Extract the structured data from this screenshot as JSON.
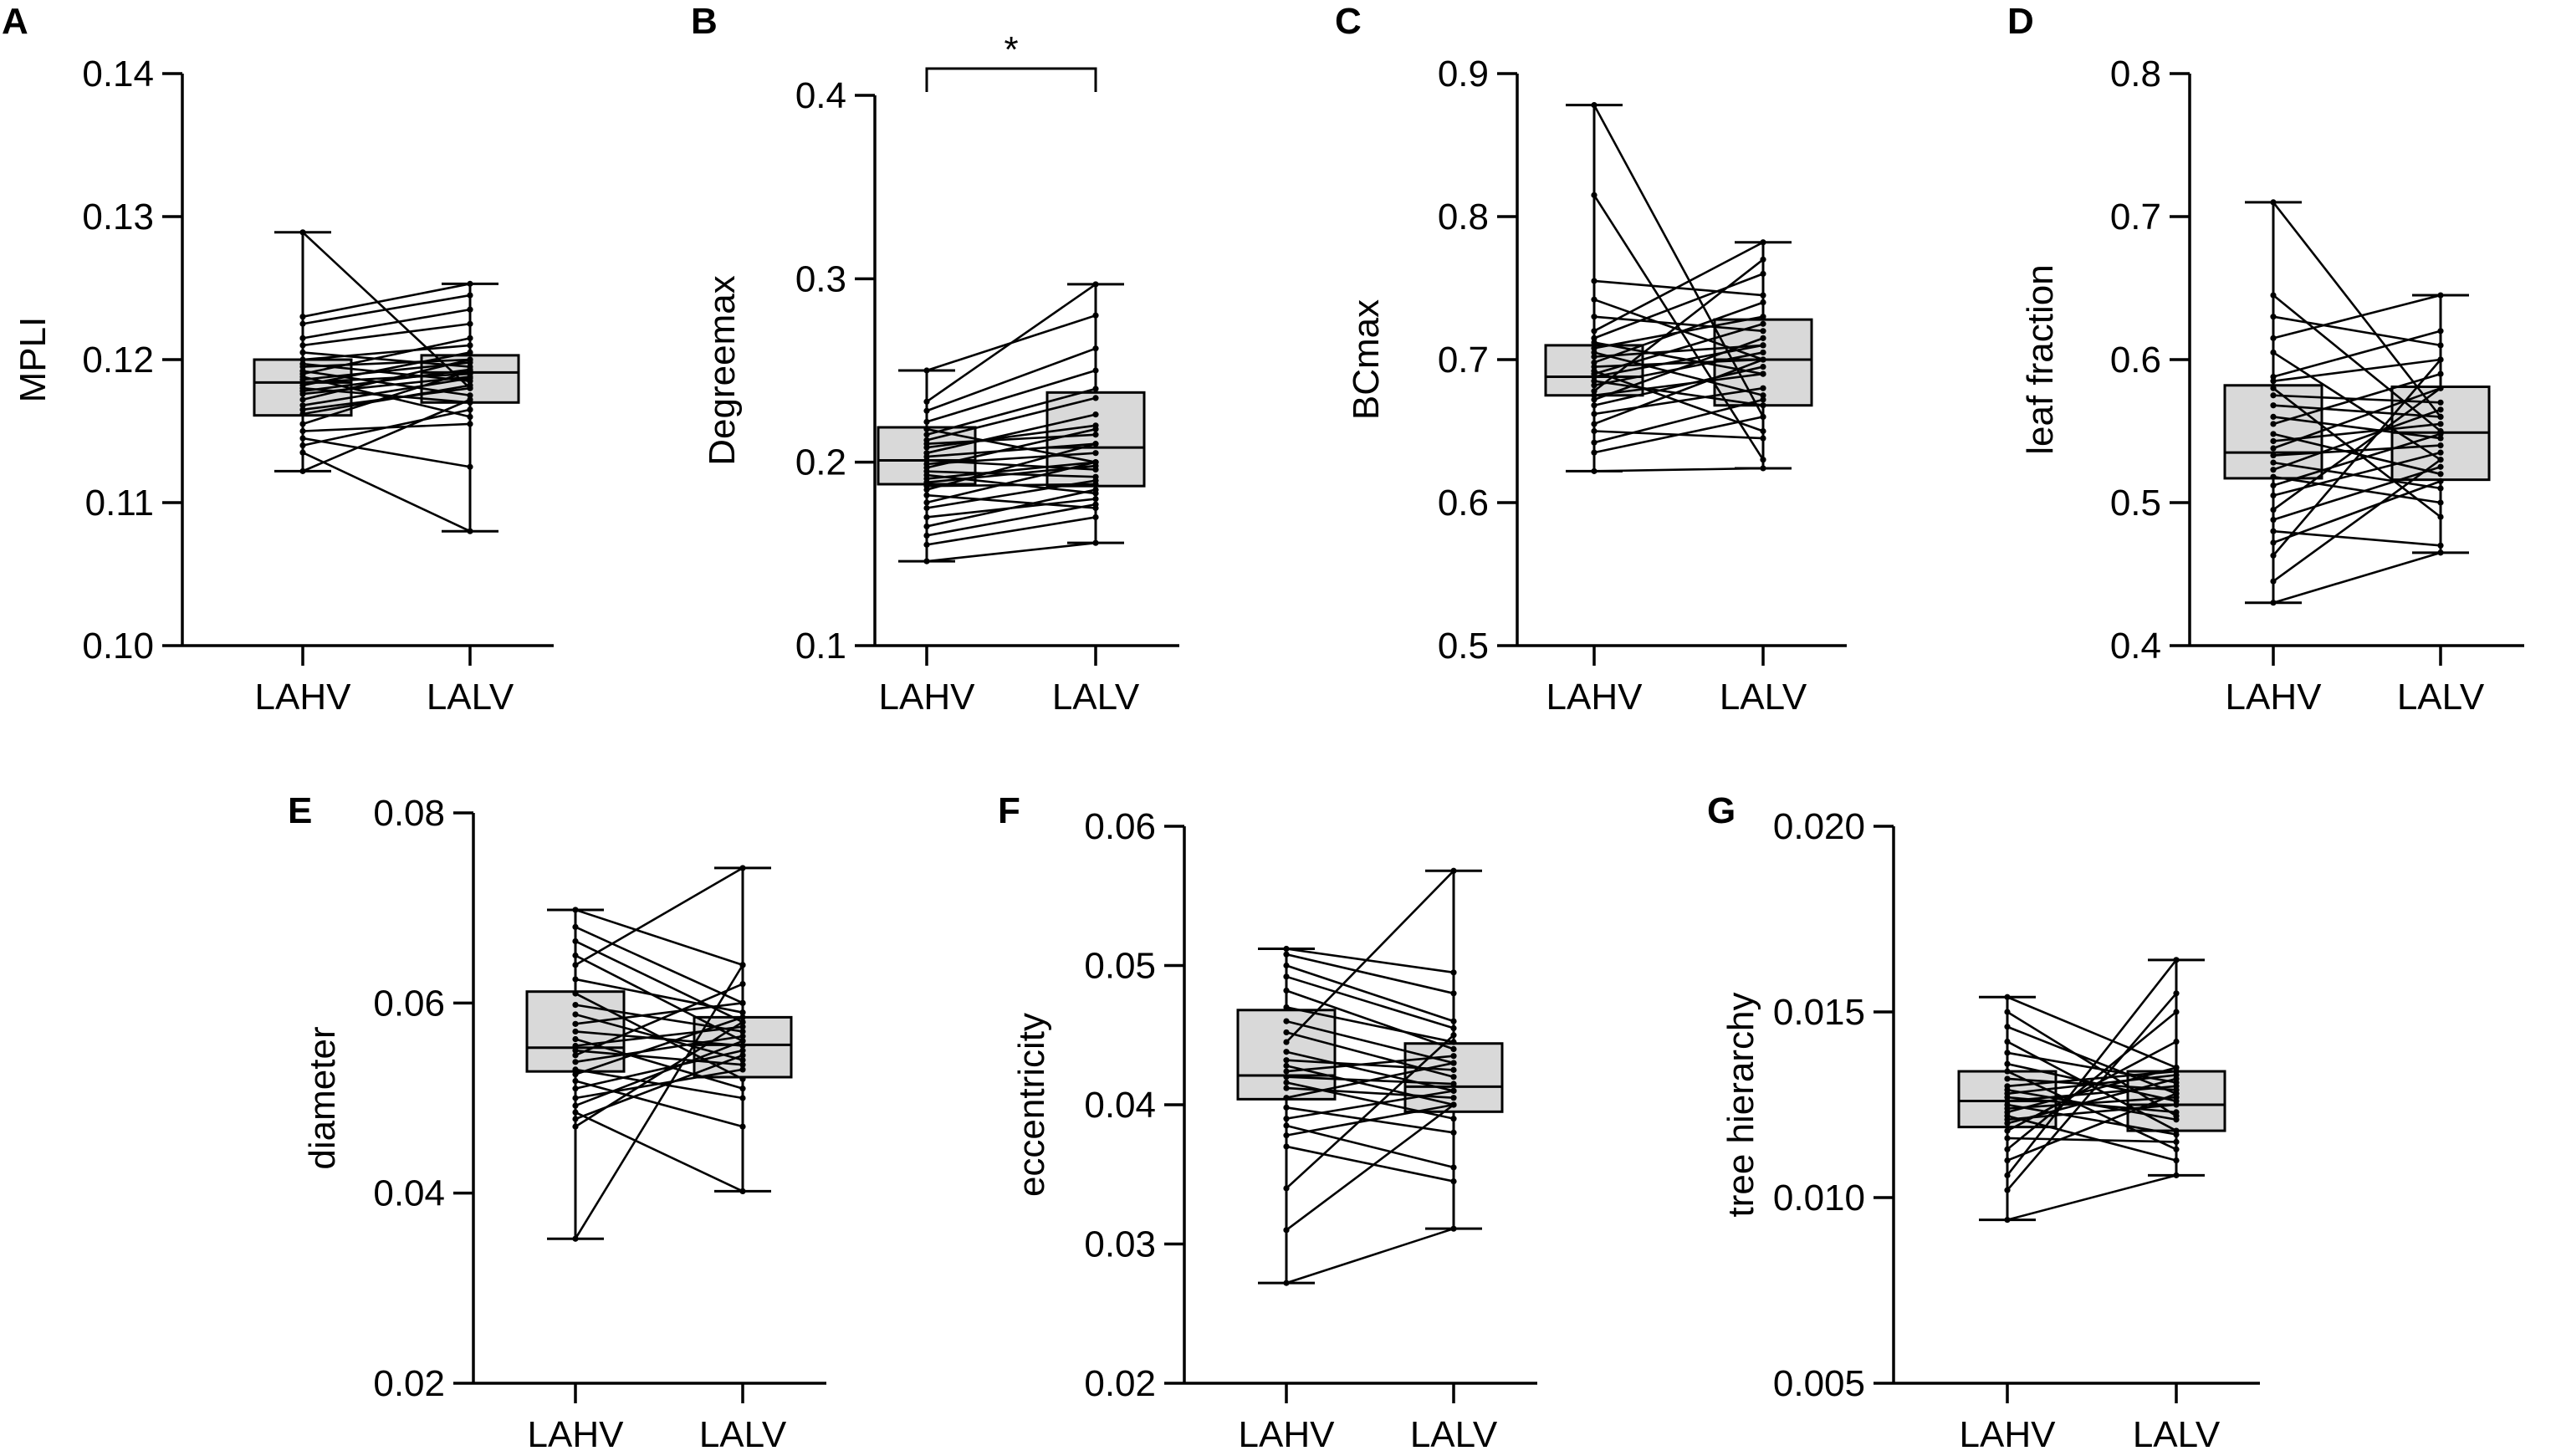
{
  "figure": {
    "box_fill": "#d9d9d9",
    "line_color": "#000000"
  },
  "chart_data": [
    {
      "type": "box",
      "panel": "A",
      "ylabel": "MPLI",
      "categories": [
        "LAHV",
        "LALV"
      ],
      "ylim": [
        0.1,
        0.14
      ],
      "yticks": [
        "0.10",
        "0.11",
        "0.12",
        "0.13",
        "0.14"
      ],
      "significance": "",
      "whiskers": [
        [
          0.1122,
          0.1289
        ],
        [
          0.108,
          0.1253
        ]
      ],
      "boxes": [
        {
          "q1": 0.1161,
          "median": 0.1184,
          "q3": 0.12
        },
        {
          "q1": 0.117,
          "median": 0.1191,
          "q3": 0.1203
        }
      ],
      "pairs": [
        [
          0.1289,
          0.118
        ],
        [
          0.123,
          0.1253
        ],
        [
          0.1225,
          0.1245
        ],
        [
          0.1215,
          0.1235
        ],
        [
          0.121,
          0.1225
        ],
        [
          0.1205,
          0.1195
        ],
        [
          0.12,
          0.121
        ],
        [
          0.1197,
          0.1185
        ],
        [
          0.1195,
          0.12
        ],
        [
          0.1192,
          0.1175
        ],
        [
          0.119,
          0.1215
        ],
        [
          0.1188,
          0.116
        ],
        [
          0.1186,
          0.1198
        ],
        [
          0.1184,
          0.119
        ],
        [
          0.1182,
          0.1205
        ],
        [
          0.118,
          0.117
        ],
        [
          0.1178,
          0.1193
        ],
        [
          0.1176,
          0.1188
        ],
        [
          0.1172,
          0.12
        ],
        [
          0.1168,
          0.1187
        ],
        [
          0.1165,
          0.118
        ],
        [
          0.1162,
          0.1182
        ],
        [
          0.1155,
          0.1192
        ],
        [
          0.115,
          0.1155
        ],
        [
          0.1145,
          0.1125
        ],
        [
          0.114,
          0.1165
        ],
        [
          0.1135,
          0.108
        ],
        [
          0.1122,
          0.1172
        ]
      ]
    },
    {
      "type": "box",
      "panel": "B",
      "ylabel": "Degreemax",
      "categories": [
        "LAHV",
        "LALV"
      ],
      "ylim": [
        0.1,
        0.4
      ],
      "yticks": [
        "0.1",
        "0.2",
        "0.3",
        "0.4"
      ],
      "significance": "*",
      "whiskers": [
        [
          0.146,
          0.25
        ],
        [
          0.156,
          0.297
        ]
      ],
      "boxes": [
        {
          "q1": 0.188,
          "median": 0.201,
          "q3": 0.219
        },
        {
          "q1": 0.187,
          "median": 0.208,
          "q3": 0.238
        }
      ],
      "pairs": [
        [
          0.25,
          0.28
        ],
        [
          0.233,
          0.297
        ],
        [
          0.228,
          0.262
        ],
        [
          0.222,
          0.25
        ],
        [
          0.218,
          0.2
        ],
        [
          0.215,
          0.24
        ],
        [
          0.212,
          0.235
        ],
        [
          0.21,
          0.215
        ],
        [
          0.208,
          0.22
        ],
        [
          0.205,
          0.226
        ],
        [
          0.203,
          0.21
        ],
        [
          0.201,
          0.196
        ],
        [
          0.199,
          0.205
        ],
        [
          0.197,
          0.218
        ],
        [
          0.195,
          0.192
        ],
        [
          0.193,
          0.183
        ],
        [
          0.191,
          0.2
        ],
        [
          0.189,
          0.198
        ],
        [
          0.187,
          0.188
        ],
        [
          0.185,
          0.21
        ],
        [
          0.182,
          0.175
        ],
        [
          0.178,
          0.2
        ],
        [
          0.175,
          0.19
        ],
        [
          0.17,
          0.18
        ],
        [
          0.165,
          0.185
        ],
        [
          0.16,
          0.177
        ],
        [
          0.155,
          0.17
        ],
        [
          0.146,
          0.156
        ]
      ]
    },
    {
      "type": "box",
      "panel": "C",
      "ylabel": "BCmax",
      "categories": [
        "LAHV",
        "LALV"
      ],
      "ylim": [
        0.5,
        0.9
      ],
      "yticks": [
        "0.5",
        "0.6",
        "0.7",
        "0.8",
        "0.9"
      ],
      "significance": "",
      "whiskers": [
        [
          0.622,
          0.878
        ],
        [
          0.624,
          0.782
        ]
      ],
      "boxes": [
        {
          "q1": 0.675,
          "median": 0.688,
          "q3": 0.71
        },
        {
          "q1": 0.668,
          "median": 0.7,
          "q3": 0.728
        }
      ],
      "pairs": [
        [
          0.878,
          0.66
        ],
        [
          0.815,
          0.63
        ],
        [
          0.755,
          0.745
        ],
        [
          0.742,
          0.7
        ],
        [
          0.73,
          0.72
        ],
        [
          0.72,
          0.782
        ],
        [
          0.715,
          0.76
        ],
        [
          0.712,
          0.69
        ],
        [
          0.708,
          0.73
        ],
        [
          0.705,
          0.675
        ],
        [
          0.702,
          0.71
        ],
        [
          0.698,
          0.74
        ],
        [
          0.695,
          0.7
        ],
        [
          0.692,
          0.65
        ],
        [
          0.69,
          0.725
        ],
        [
          0.688,
          0.71
        ],
        [
          0.685,
          0.668
        ],
        [
          0.682,
          0.705
        ],
        [
          0.678,
          0.77
        ],
        [
          0.675,
          0.69
        ],
        [
          0.672,
          0.715
        ],
        [
          0.668,
          0.695
        ],
        [
          0.662,
          0.68
        ],
        [
          0.655,
          0.7
        ],
        [
          0.65,
          0.645
        ],
        [
          0.642,
          0.672
        ],
        [
          0.635,
          0.66
        ],
        [
          0.622,
          0.624
        ]
      ]
    },
    {
      "type": "box",
      "panel": "D",
      "ylabel": "leaf fraction",
      "categories": [
        "LAHV",
        "LALV"
      ],
      "ylim": [
        0.4,
        0.8
      ],
      "yticks": [
        "0.4",
        "0.5",
        "0.6",
        "0.7",
        "0.8"
      ],
      "significance": "",
      "whiskers": [
        [
          0.43,
          0.71
        ],
        [
          0.465,
          0.645
        ]
      ],
      "boxes": [
        {
          "q1": 0.517,
          "median": 0.535,
          "q3": 0.582
        },
        {
          "q1": 0.516,
          "median": 0.549,
          "q3": 0.581
        }
      ],
      "pairs": [
        [
          0.71,
          0.56
        ],
        [
          0.645,
          0.55
        ],
        [
          0.63,
          0.61
        ],
        [
          0.615,
          0.645
        ],
        [
          0.605,
          0.53
        ],
        [
          0.588,
          0.62
        ],
        [
          0.585,
          0.6
        ],
        [
          0.58,
          0.49
        ],
        [
          0.575,
          0.57
        ],
        [
          0.568,
          0.56
        ],
        [
          0.56,
          0.545
        ],
        [
          0.555,
          0.59
        ],
        [
          0.548,
          0.52
        ],
        [
          0.543,
          0.555
        ],
        [
          0.538,
          0.58
        ],
        [
          0.533,
          0.54
        ],
        [
          0.528,
          0.51
        ],
        [
          0.523,
          0.565
        ],
        [
          0.518,
          0.5
        ],
        [
          0.512,
          0.548
        ],
        [
          0.505,
          0.535
        ],
        [
          0.495,
          0.58
        ],
        [
          0.488,
          0.525
        ],
        [
          0.48,
          0.47
        ],
        [
          0.472,
          0.515
        ],
        [
          0.463,
          0.6
        ],
        [
          0.445,
          0.53
        ],
        [
          0.43,
          0.465
        ]
      ]
    },
    {
      "type": "box",
      "panel": "E",
      "ylabel": "diameter",
      "categories": [
        "LAHV",
        "LALV"
      ],
      "ylim": [
        0.02,
        0.08
      ],
      "yticks": [
        "0.02",
        "0.04",
        "0.06",
        "0.08"
      ],
      "significance": "",
      "whiskers": [
        [
          0.0352,
          0.0698
        ],
        [
          0.0402,
          0.0742
        ]
      ],
      "boxes": [
        {
          "q1": 0.0528,
          "median": 0.0553,
          "q3": 0.0612
        },
        {
          "q1": 0.0522,
          "median": 0.0556,
          "q3": 0.0585
        }
      ],
      "pairs": [
        [
          0.0698,
          0.064
        ],
        [
          0.068,
          0.06
        ],
        [
          0.0665,
          0.058
        ],
        [
          0.065,
          0.056
        ],
        [
          0.064,
          0.0742
        ],
        [
          0.0625,
          0.059
        ],
        [
          0.061,
          0.052
        ],
        [
          0.0598,
          0.057
        ],
        [
          0.0588,
          0.054
        ],
        [
          0.0578,
          0.06
        ],
        [
          0.057,
          0.0555
        ],
        [
          0.0562,
          0.051
        ],
        [
          0.0555,
          0.0575
        ],
        [
          0.055,
          0.0535
        ],
        [
          0.0545,
          0.062
        ],
        [
          0.0538,
          0.0565
        ],
        [
          0.053,
          0.05
        ],
        [
          0.0525,
          0.0585
        ],
        [
          0.0518,
          0.047
        ],
        [
          0.051,
          0.055
        ],
        [
          0.05,
          0.053
        ],
        [
          0.0492,
          0.056
        ],
        [
          0.0485,
          0.0402
        ],
        [
          0.0478,
          0.0545
        ],
        [
          0.047,
          0.058
        ],
        [
          0.0352,
          0.064
        ]
      ]
    },
    {
      "type": "box",
      "panel": "F",
      "ylabel": "eccentricity",
      "categories": [
        "LAHV",
        "LALV"
      ],
      "ylim": [
        0.02,
        0.06
      ],
      "yticks": [
        "0.02",
        "0.03",
        "0.04",
        "0.05",
        "0.06"
      ],
      "significance": "",
      "whiskers": [
        [
          0.0272,
          0.0512
        ],
        [
          0.0311,
          0.0568
        ]
      ],
      "boxes": [
        {
          "q1": 0.0404,
          "median": 0.0421,
          "q3": 0.0468
        },
        {
          "q1": 0.0395,
          "median": 0.0413,
          "q3": 0.0444
        }
      ],
      "pairs": [
        [
          0.0512,
          0.0495
        ],
        [
          0.0508,
          0.048
        ],
        [
          0.05,
          0.046
        ],
        [
          0.0492,
          0.0455
        ],
        [
          0.0482,
          0.044
        ],
        [
          0.047,
          0.0445
        ],
        [
          0.046,
          0.043
        ],
        [
          0.0452,
          0.042
        ],
        [
          0.0445,
          0.0568
        ],
        [
          0.0438,
          0.041
        ],
        [
          0.0432,
          0.0425
        ],
        [
          0.0428,
          0.04
        ],
        [
          0.0424,
          0.0435
        ],
        [
          0.042,
          0.0415
        ],
        [
          0.0416,
          0.039
        ],
        [
          0.0412,
          0.0405
        ],
        [
          0.0405,
          0.043
        ],
        [
          0.0398,
          0.038
        ],
        [
          0.039,
          0.041
        ],
        [
          0.0385,
          0.0355
        ],
        [
          0.0378,
          0.04
        ],
        [
          0.037,
          0.0345
        ],
        [
          0.034,
          0.045
        ],
        [
          0.031,
          0.04
        ],
        [
          0.0272,
          0.0311
        ]
      ]
    },
    {
      "type": "box",
      "panel": "G",
      "ylabel": "tree hierarchy",
      "categories": [
        "LAHV",
        "LALV"
      ],
      "ylim": [
        0.005,
        0.02
      ],
      "yticks": [
        "0.005",
        "0.010",
        "0.015",
        "0.020"
      ],
      "significance": "",
      "whiskers": [
        [
          0.0094,
          0.0154
        ],
        [
          0.0106,
          0.0164
        ]
      ],
      "boxes": [
        {
          "q1": 0.0119,
          "median": 0.0126,
          "q3": 0.0134
        },
        {
          "q1": 0.0118,
          "median": 0.0125,
          "q3": 0.0134
        }
      ],
      "pairs": [
        [
          0.0154,
          0.0135
        ],
        [
          0.015,
          0.0122
        ],
        [
          0.0146,
          0.0128
        ],
        [
          0.0142,
          0.0118
        ],
        [
          0.0139,
          0.0131
        ],
        [
          0.0136,
          0.0126
        ],
        [
          0.0134,
          0.0113
        ],
        [
          0.0132,
          0.0129
        ],
        [
          0.013,
          0.0134
        ],
        [
          0.0129,
          0.0121
        ],
        [
          0.0128,
          0.0133
        ],
        [
          0.0127,
          0.0123
        ],
        [
          0.0126,
          0.013
        ],
        [
          0.0125,
          0.0117
        ],
        [
          0.0124,
          0.0127
        ],
        [
          0.0123,
          0.0135
        ],
        [
          0.0122,
          0.011
        ],
        [
          0.0121,
          0.0125
        ],
        [
          0.012,
          0.0132
        ],
        [
          0.0118,
          0.0142
        ],
        [
          0.0116,
          0.0115
        ],
        [
          0.0113,
          0.015
        ],
        [
          0.011,
          0.0128
        ],
        [
          0.0106,
          0.0164
        ],
        [
          0.0102,
          0.0155
        ],
        [
          0.0094,
          0.0106
        ]
      ]
    }
  ]
}
